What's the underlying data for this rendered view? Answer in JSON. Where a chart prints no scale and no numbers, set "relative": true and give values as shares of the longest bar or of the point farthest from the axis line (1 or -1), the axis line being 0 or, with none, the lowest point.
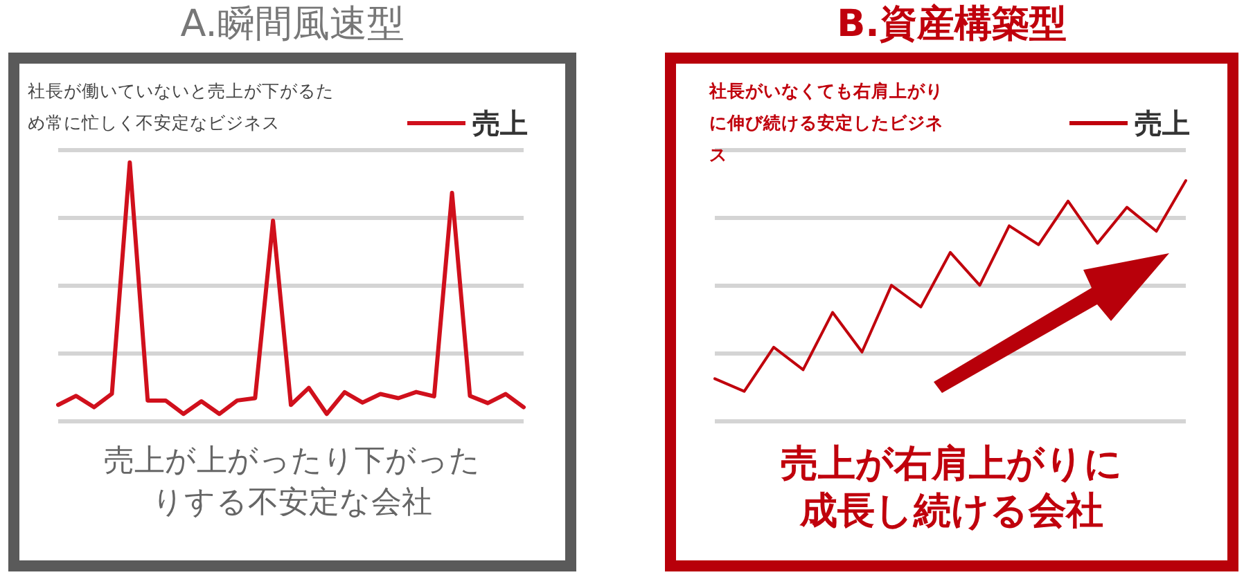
{
  "chart_data": [
    {
      "type": "line",
      "title": "A.瞬間風速型",
      "subtitle": "社長が働いていないと売上が下がるため常に忙しく不安定なビジネス",
      "relative": true,
      "grid": "y",
      "legend": "top right",
      "marker": "none",
      "line_style": "solid",
      "categories": [
        null,
        null,
        null,
        null,
        null,
        null,
        null,
        null,
        null,
        null,
        null,
        null,
        null,
        null,
        null,
        null,
        null,
        null,
        null,
        null,
        null,
        null,
        null,
        null,
        null,
        null,
        null
      ],
      "series": [
        {
          "name": "売上",
          "color": "#d0101c",
          "values": [
            0.061,
            0.096,
            0.052,
            0.104,
            1,
            0.078,
            0.078,
            0.026,
            0.075,
            0.026,
            0.078,
            0.087,
            0.774,
            0.061,
            0.127,
            0.026,
            0.11,
            0.07,
            0.103,
            0.087,
            0.111,
            0.094,
            0.882,
            0.096,
            0.068,
            0.103,
            0.052
          ]
        }
      ],
      "annotations": [
        "売上が上がったり下がったりする不安定な会社"
      ]
    },
    {
      "type": "line",
      "title": "B.資産構築型",
      "subtitle": "社長がいなくても右肩上がりに伸び続ける安定したビジネス",
      "relative": true,
      "grid": "y",
      "legend": "top right",
      "marker": "none",
      "line_style": "solid",
      "categories": [
        null,
        null,
        null,
        null,
        null,
        null,
        null,
        null,
        null,
        null,
        null,
        null,
        null,
        null,
        null,
        null,
        null
      ],
      "series": [
        {
          "name": "売上",
          "color": "#c0000c",
          "values": [
            0.175,
            0.122,
            0.306,
            0.212,
            0.451,
            0.286,
            0.564,
            0.474,
            0.701,
            0.564,
            0.812,
            0.733,
            0.915,
            0.739,
            0.889,
            0.789,
            1
          ]
        }
      ],
      "annotations": [
        "売上が右肩上がりに成長し続ける会社"
      ]
    }
  ]
}
